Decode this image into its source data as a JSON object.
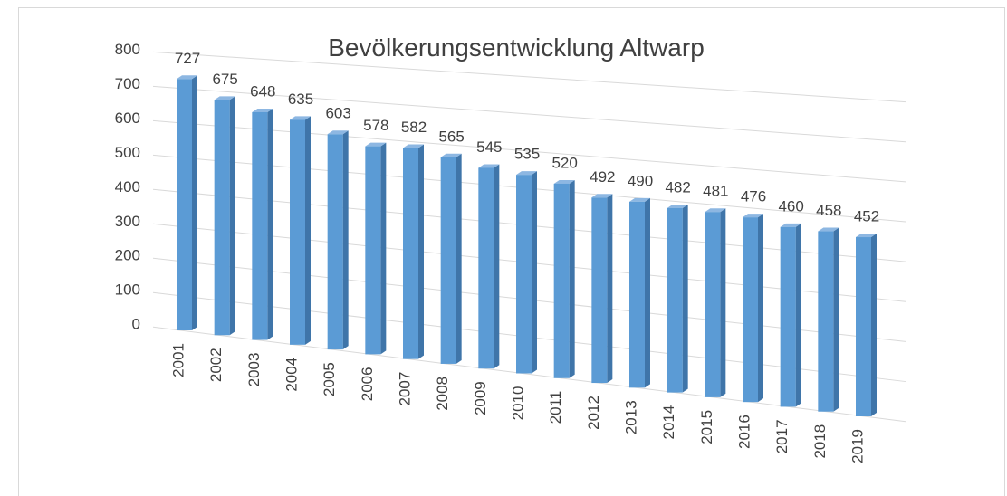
{
  "chart_data": {
    "type": "bar3d",
    "title": "Bevölkerungsentwicklung Altwarp",
    "categories": [
      "2001",
      "2002",
      "2003",
      "2004",
      "2005",
      "2006",
      "2007",
      "2008",
      "2009",
      "2010",
      "2011",
      "2012",
      "2013",
      "2014",
      "2015",
      "2016",
      "2017",
      "2018",
      "2019"
    ],
    "values": [
      727,
      675,
      648,
      635,
      603,
      578,
      582,
      565,
      545,
      535,
      520,
      492,
      490,
      482,
      481,
      476,
      460,
      458,
      452
    ],
    "color": "#5b9bd5",
    "ylim": [
      0,
      800
    ],
    "yticks": [
      0,
      100,
      200,
      300,
      400,
      500,
      600,
      700,
      800
    ],
    "grid": true
  }
}
